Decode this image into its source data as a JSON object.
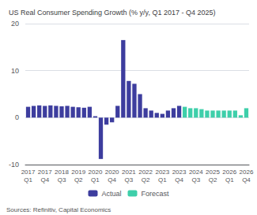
{
  "chart_data": {
    "type": "bar",
    "title": "US Real Consumer Spending Growth (% y/y, Q1 2017 - Q4 2025)",
    "annotations": [
      "Sources: Refinitiv, Capital Economics"
    ],
    "categories": [
      "2017\nQ1",
      null,
      null,
      "2017\nQ4",
      null,
      null,
      "2018\nQ3",
      null,
      null,
      "2019\nQ2",
      null,
      null,
      "2020\nQ1",
      null,
      null,
      "2020\nQ4",
      null,
      null,
      "2021\nQ3",
      null,
      null,
      "2022\nQ2",
      null,
      null,
      "2023\nQ1",
      null,
      null,
      "2023\nQ4",
      null,
      null,
      "2024\nQ3",
      null,
      null,
      "2025\nQ2",
      null,
      null,
      "2026\nQ1",
      null,
      null,
      "2026\nQ4"
    ],
    "series": [
      {
        "name": "Actual",
        "color": "#3d3d9e",
        "values": [
          2.3,
          2.5,
          2.6,
          2.5,
          2.6,
          2.5,
          2.4,
          2.5,
          2.3,
          2.2,
          2.1,
          2.3,
          0.3,
          -8.8,
          -1.5,
          -1.0,
          2.5,
          16.5,
          7.8,
          7.2,
          5.0,
          2.0,
          1.5,
          1.0,
          0.8,
          1.5,
          2.0,
          2.5,
          null,
          null,
          null,
          null,
          null,
          null,
          null,
          null,
          null,
          null,
          null,
          null
        ]
      },
      {
        "name": "Forecast",
        "color": "#3ecfaa",
        "values": [
          null,
          null,
          null,
          null,
          null,
          null,
          null,
          null,
          null,
          null,
          null,
          null,
          null,
          null,
          null,
          null,
          null,
          null,
          null,
          null,
          null,
          null,
          null,
          null,
          null,
          null,
          null,
          null,
          2.3,
          2.0,
          2.0,
          1.8,
          1.5,
          1.5,
          1.5,
          1.5,
          1.5,
          1.5,
          0.5,
          2.0
        ]
      }
    ],
    "ylim": [
      -10,
      20
    ],
    "yticks": [
      -10,
      0,
      10,
      20
    ],
    "grid": true,
    "legend": "bottom"
  }
}
